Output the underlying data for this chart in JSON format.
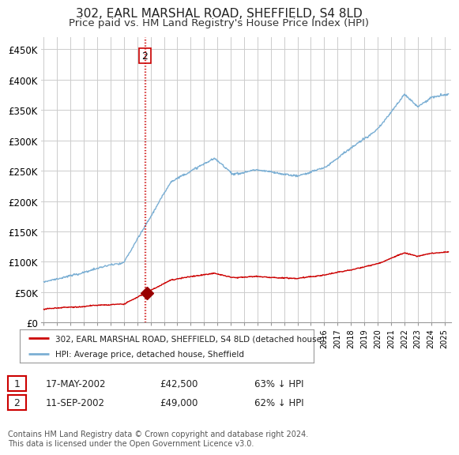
{
  "title": "302, EARL MARSHAL ROAD, SHEFFIELD, S4 8LD",
  "subtitle": "Price paid vs. HM Land Registry's House Price Index (HPI)",
  "title_fontsize": 11,
  "subtitle_fontsize": 9.5,
  "ylabel_ticks": [
    "£0",
    "£50K",
    "£100K",
    "£150K",
    "£200K",
    "£250K",
    "£300K",
    "£350K",
    "£400K",
    "£450K"
  ],
  "ytick_values": [
    0,
    50000,
    100000,
    150000,
    200000,
    250000,
    300000,
    350000,
    400000,
    450000
  ],
  "ylim": [
    0,
    470000
  ],
  "xlim_start": 1994.8,
  "xlim_end": 2025.5,
  "sale1_x": 2002.37,
  "sale1_y": 42500,
  "sale2_x": 2002.7,
  "sale2_y": 49000,
  "sale2_label": "2",
  "vline_x": 2002.55,
  "red_line_color": "#cc0000",
  "blue_line_color": "#7bafd4",
  "sale_marker_color": "#990000",
  "legend_line1": "302, EARL MARSHAL ROAD, SHEFFIELD, S4 8LD (detached house)",
  "legend_line2": "HPI: Average price, detached house, Sheffield",
  "table_row1_num": "1",
  "table_row1_date": "17-MAY-2002",
  "table_row1_price": "£42,500",
  "table_row1_hpi": "63% ↓ HPI",
  "table_row2_num": "2",
  "table_row2_date": "11-SEP-2002",
  "table_row2_price": "£49,000",
  "table_row2_hpi": "62% ↓ HPI",
  "footnote": "Contains HM Land Registry data © Crown copyright and database right 2024.\nThis data is licensed under the Open Government Licence v3.0.",
  "background_color": "#ffffff",
  "grid_color": "#cccccc"
}
